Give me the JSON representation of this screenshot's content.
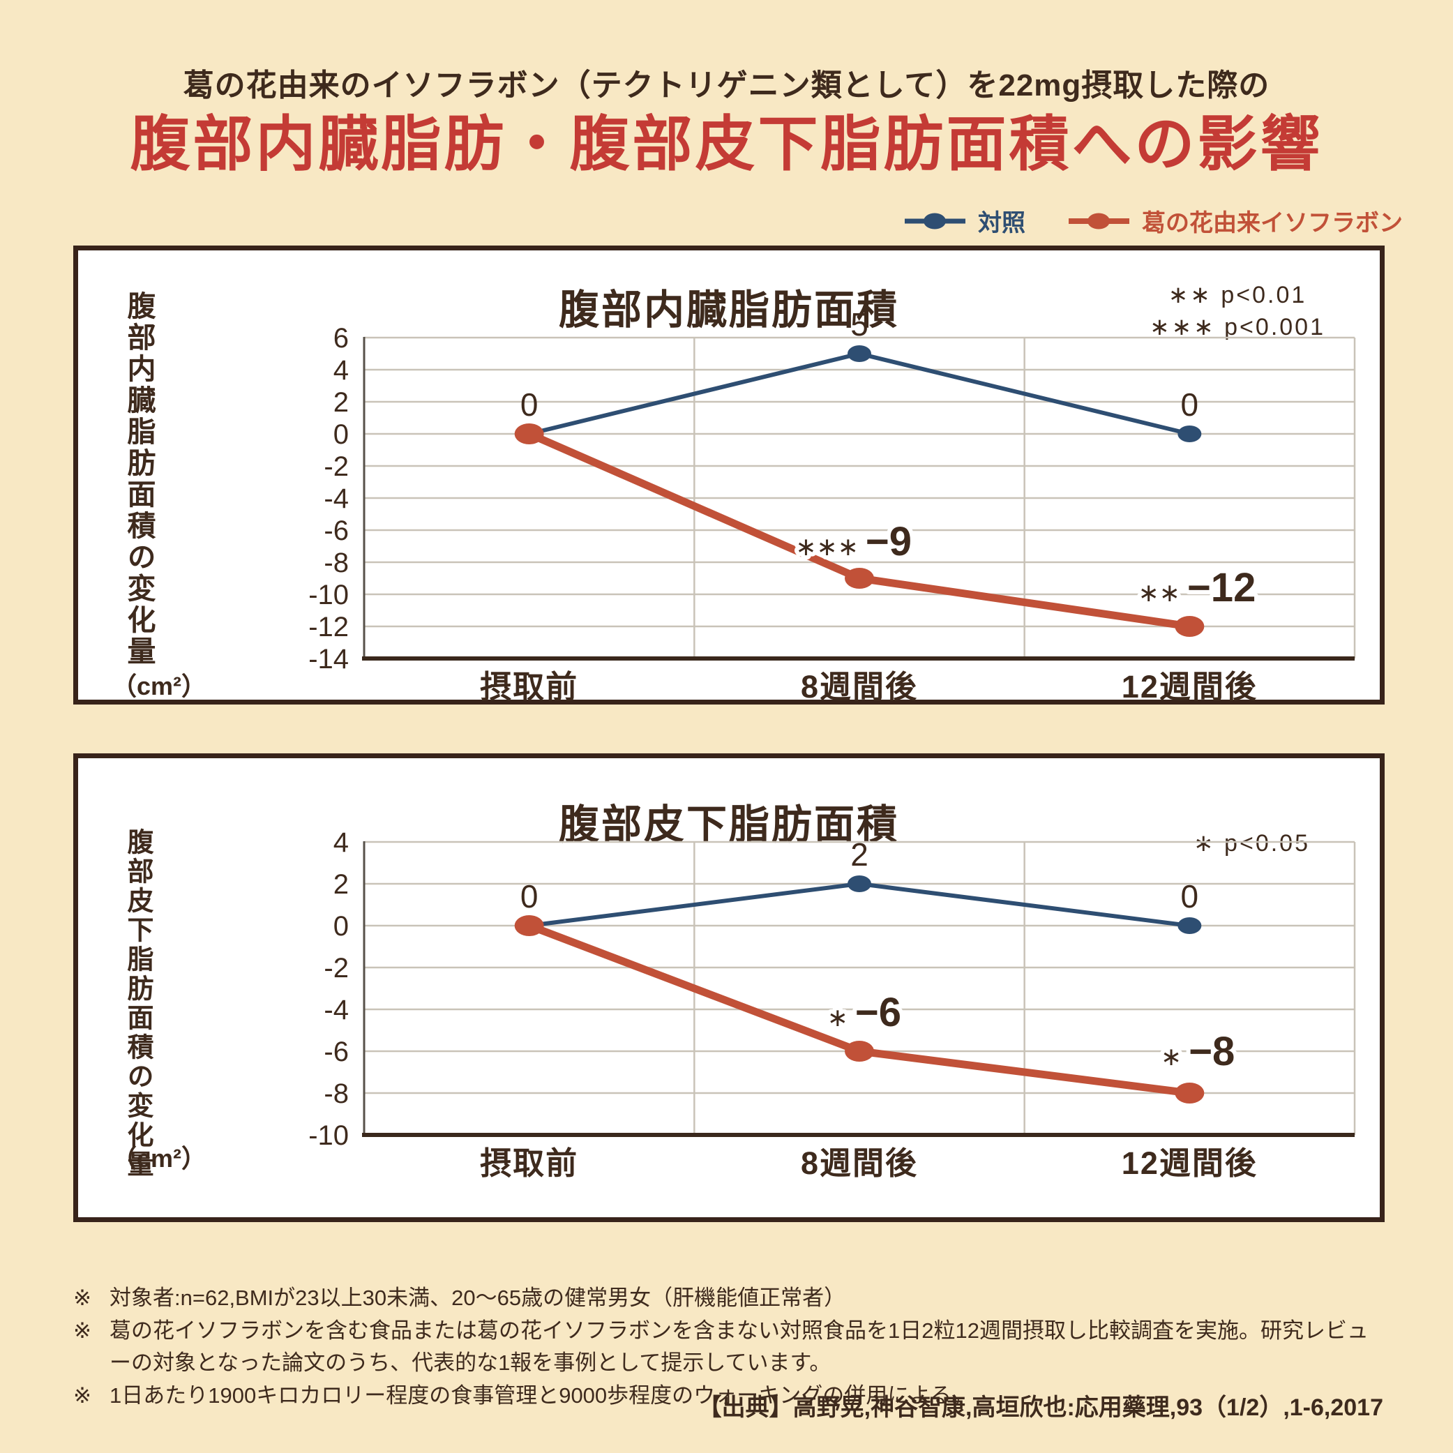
{
  "page": {
    "background_color": "#f8e8c4",
    "text_color": "#3e2a1d"
  },
  "header": {
    "subtitle": "葛の花由来のイソフラボン（テクトリゲニン類として）を22mg摂取した際の",
    "title": "腹部内臓脂肪・腹部皮下脂肪面積への影響",
    "title_color": "#c43b35"
  },
  "legend": {
    "items": [
      {
        "label": "対照",
        "color": "#2e4e72"
      },
      {
        "label": "葛の花由来イソフラボン",
        "color": "#c15138"
      }
    ]
  },
  "chart_data": [
    {
      "type": "line",
      "title": "腹部内臓脂肪面積",
      "p_notes": [
        "∗∗ p<0.01",
        "∗∗∗ p<0.001"
      ],
      "ylabel": "腹部内臓脂肪面積の変化量",
      "yunit": "（cm²）",
      "categories": [
        "摂取前",
        "8週間後",
        "12週間後"
      ],
      "ylim": [
        -14,
        6
      ],
      "ytick_step": 2,
      "grid": true,
      "series": [
        {
          "name": "対照",
          "color": "#2e4e72",
          "line_width": 6,
          "marker_rx": 17,
          "marker_ry": 12,
          "values": [
            0,
            5,
            0
          ],
          "point_labels": [
            {
              "text": "0",
              "anchor": "middle",
              "dx": 0,
              "dy": -26,
              "color": "#3e2a1d",
              "size": 46
            },
            {
              "text": "5",
              "anchor": "middle",
              "dx": 0,
              "dy": -26,
              "color": "#3e2a1d",
              "size": 46
            },
            {
              "text": "0",
              "anchor": "middle",
              "dx": 0,
              "dy": -26,
              "color": "#3e2a1d",
              "size": 46
            }
          ]
        },
        {
          "name": "葛の花由来イソフラボン",
          "color": "#c15138",
          "line_width": 11,
          "marker_rx": 21,
          "marker_ry": 15,
          "values": [
            0,
            -9,
            -12
          ],
          "point_labels": [
            null,
            {
              "star": "∗∗∗",
              "text": "−9",
              "anchor": "end",
              "dx": 75,
              "dy": -33,
              "color": "#c15138",
              "size": 58,
              "halo": true
            },
            {
              "star": "∗∗",
              "text": "−12",
              "anchor": "end",
              "dx": 95,
              "dy": -36,
              "color": "#c15138",
              "size": 58,
              "halo": true
            }
          ]
        }
      ]
    },
    {
      "type": "line",
      "title": "腹部皮下脂肪面積",
      "p_notes": [
        "∗ p<0.05"
      ],
      "ylabel": "腹部皮下脂肪面積の変化量",
      "yunit": "（cm²）",
      "categories": [
        "摂取前",
        "8週間後",
        "12週間後"
      ],
      "ylim": [
        -10,
        4
      ],
      "ytick_step": 2,
      "grid": true,
      "series": [
        {
          "name": "対照",
          "color": "#2e4e72",
          "line_width": 6,
          "marker_rx": 17,
          "marker_ry": 12,
          "values": [
            0,
            2,
            0
          ],
          "point_labels": [
            {
              "text": "0",
              "anchor": "middle",
              "dx": 0,
              "dy": -26,
              "color": "#3e2a1d",
              "size": 46
            },
            {
              "text": "2",
              "anchor": "middle",
              "dx": 0,
              "dy": -26,
              "color": "#3e2a1d",
              "size": 46
            },
            {
              "text": "0",
              "anchor": "middle",
              "dx": 0,
              "dy": -26,
              "color": "#3e2a1d",
              "size": 46
            }
          ]
        },
        {
          "name": "葛の花由来イソフラボン",
          "color": "#c15138",
          "line_width": 11,
          "marker_rx": 21,
          "marker_ry": 15,
          "values": [
            0,
            -6,
            -8
          ],
          "point_labels": [
            null,
            {
              "star": "∗",
              "text": "−6",
              "anchor": "end",
              "dx": 60,
              "dy": -36,
              "color": "#c15138",
              "size": 58,
              "halo": true
            },
            {
              "star": "∗",
              "text": "−8",
              "anchor": "end",
              "dx": 65,
              "dy": -40,
              "color": "#c15138",
              "size": 58,
              "halo": true
            }
          ]
        }
      ]
    }
  ],
  "footnotes": [
    {
      "marker": "※",
      "text": "対象者:n=62,BMIが23以上30未満、20〜65歳の健常男女（肝機能値正常者）"
    },
    {
      "marker": "※",
      "text": "葛の花イソフラボンを含む食品または葛の花イソフラボンを含まない対照食品を1日2粒12週間摂取し比較調査を実施。研究レビューの対象となった論文のうち、代表的な1報を事例として提示しています。"
    },
    {
      "marker": "※",
      "text": "1日あたり1900キロカロリー程度の食事管理と9000歩程度のウォーキングの併用による。"
    }
  ],
  "source": "【出典】高野晃,神谷智康,高垣欣也:応用藥理,93（1/2）,1-6,2017"
}
